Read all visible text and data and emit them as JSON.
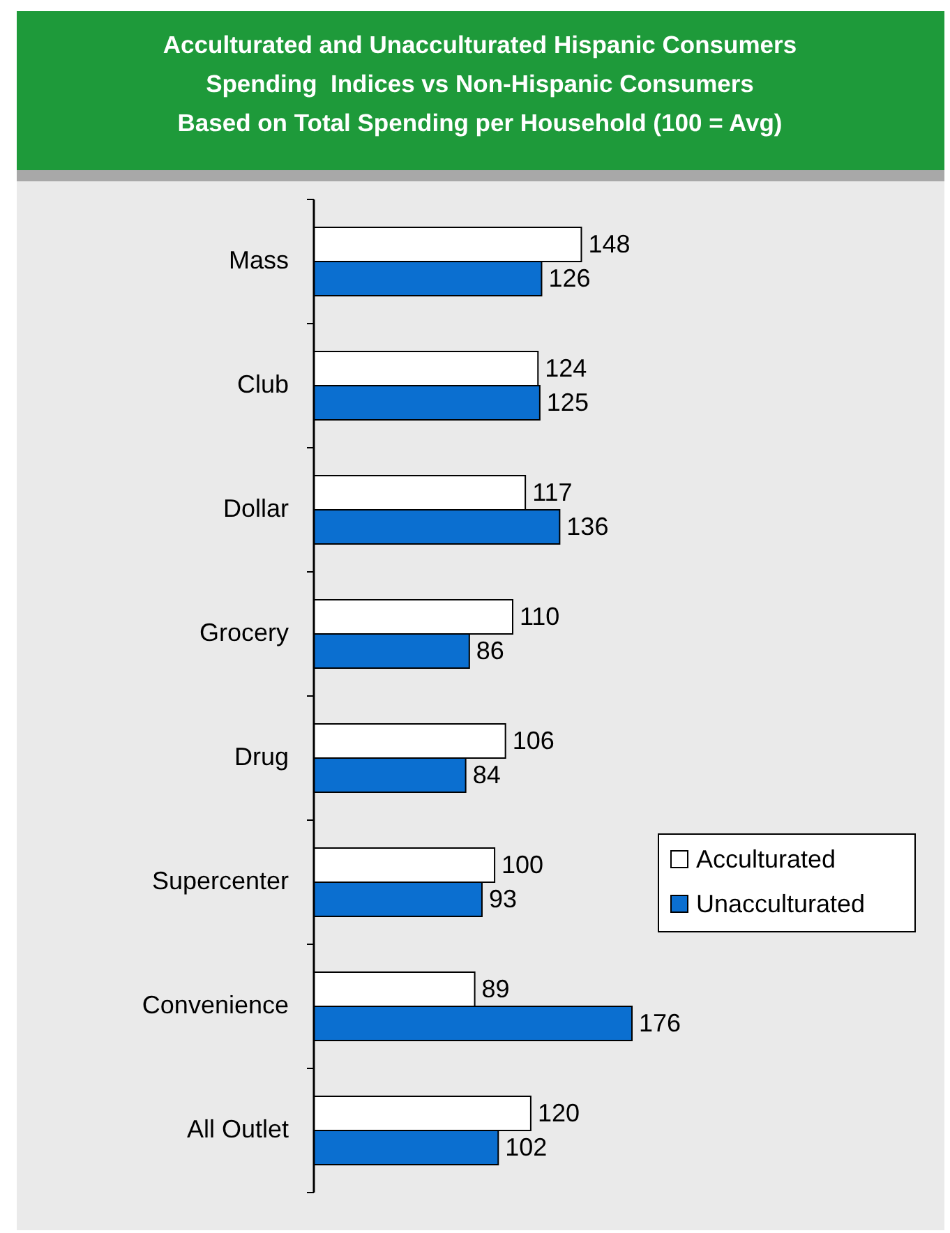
{
  "chart_data": {
    "type": "bar",
    "orientation": "horizontal",
    "title": "Acculturated and Unacculturated Hispanic Consumers\nSpending  Indices vs Non-Hispanic Consumers\nBased on Total Spending per Household (100 = Avg)",
    "categories": [
      "Mass",
      "Club",
      "Dollar",
      "Grocery",
      "Drug",
      "Supercenter",
      "Convenience",
      "All Outlet"
    ],
    "series": [
      {
        "name": "Acculturated",
        "color": "#ffffff",
        "values": [
          148,
          124,
          117,
          110,
          106,
          100,
          89,
          120
        ]
      },
      {
        "name": "Unacculturated",
        "color": "#0b6fd0",
        "values": [
          126,
          125,
          136,
          86,
          84,
          93,
          176,
          102
        ]
      }
    ],
    "data_labels": true,
    "legend": "right"
  }
}
